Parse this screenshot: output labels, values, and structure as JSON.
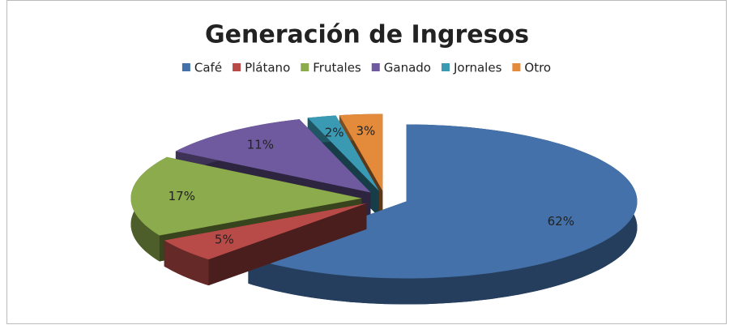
{
  "chart_data": {
    "type": "pie3d",
    "title": "Generación de Ingresos",
    "categories": [
      "Café",
      "Plátano",
      "Frutales",
      "Ganado",
      "Jornales",
      "Otro"
    ],
    "values": [
      62,
      5,
      17,
      11,
      2,
      3
    ],
    "value_labels": [
      "62%",
      "5%",
      "17%",
      "11%",
      "2%",
      "3%"
    ],
    "colors": [
      "#4471a9",
      "#b84b48",
      "#8cab4c",
      "#705a9f",
      "#3a9ab4",
      "#e38b3b"
    ],
    "legend": "top"
  }
}
